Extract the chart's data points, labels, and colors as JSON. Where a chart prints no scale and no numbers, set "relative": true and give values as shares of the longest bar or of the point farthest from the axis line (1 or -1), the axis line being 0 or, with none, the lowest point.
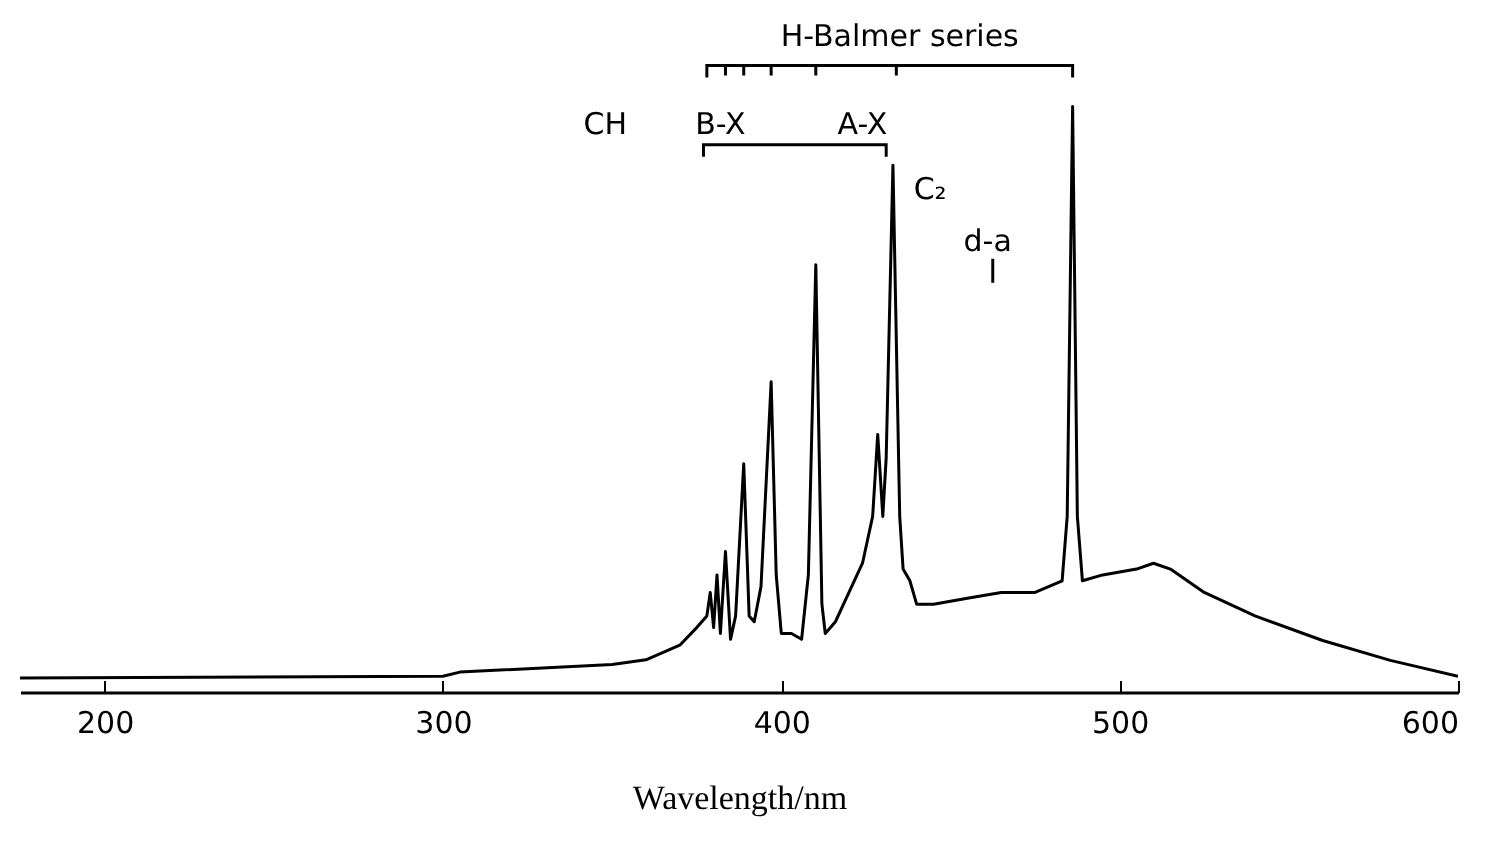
{
  "chart_data": {
    "type": "line",
    "xlabel": "Wavelength/nm",
    "relative": true,
    "color": "#000000",
    "xlim": [
      175,
      600
    ],
    "xticks": [
      200,
      300,
      400,
      500,
      600
    ],
    "x": [
      175,
      300,
      305,
      350,
      360,
      370,
      375,
      378,
      379,
      380,
      381,
      382,
      383.5,
      385,
      386.5,
      388.9,
      390.5,
      392,
      394,
      397,
      398.5,
      400,
      403,
      406,
      408,
      410.2,
      412,
      413,
      416,
      420,
      424,
      427,
      428.5,
      430,
      431,
      433,
      435,
      436,
      438,
      440,
      445,
      455,
      465,
      475,
      483,
      484.5,
      486.1,
      487.5,
      489,
      495,
      505,
      510,
      515,
      525,
      540,
      560,
      580,
      600
    ],
    "values": [
      0.024,
      0.027,
      0.034,
      0.047,
      0.055,
      0.08,
      0.11,
      0.13,
      0.17,
      0.11,
      0.2,
      0.1,
      0.24,
      0.09,
      0.13,
      0.39,
      0.13,
      0.12,
      0.18,
      0.53,
      0.2,
      0.1,
      0.1,
      0.09,
      0.2,
      0.73,
      0.15,
      0.1,
      0.12,
      0.17,
      0.22,
      0.3,
      0.44,
      0.3,
      0.4,
      0.9,
      0.3,
      0.21,
      0.19,
      0.15,
      0.15,
      0.16,
      0.17,
      0.17,
      0.19,
      0.3,
      1,
      0.3,
      0.19,
      0.2,
      0.21,
      0.22,
      0.21,
      0.17,
      0.13,
      0.088,
      0.054,
      0.027
    ],
    "annotations": [
      "H-Balmer series",
      "CH",
      "B-X",
      "A-X",
      "C₂",
      "d-a"
    ]
  }
}
